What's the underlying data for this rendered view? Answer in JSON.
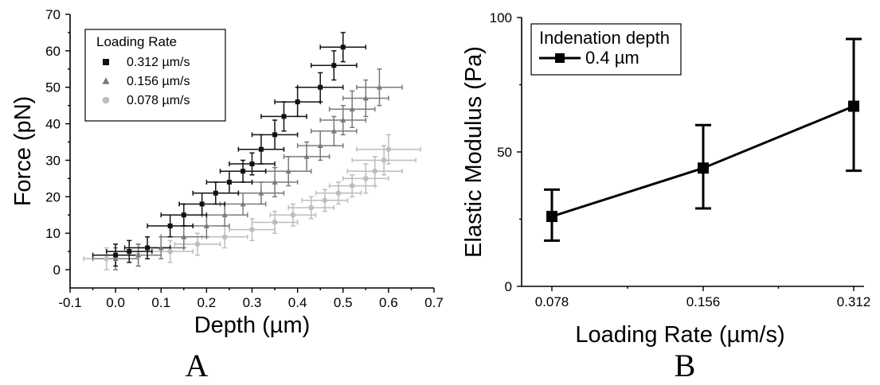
{
  "chart_data": [
    {
      "type": "scatter",
      "panel_label": "A",
      "xlabel": "Depth (µm)",
      "ylabel": "Force (pN)",
      "xlim": [
        -0.1,
        0.7
      ],
      "ylim": [
        -5,
        70
      ],
      "xticks": [
        "-0.1",
        "0.0",
        "0.1",
        "0.2",
        "0.3",
        "0.4",
        "0.5",
        "0.6",
        "0.7"
      ],
      "xtick_values": [
        -0.1,
        0.0,
        0.1,
        0.2,
        0.3,
        0.4,
        0.5,
        0.6,
        0.7
      ],
      "yticks": [
        "0",
        "10",
        "20",
        "30",
        "40",
        "50",
        "60",
        "70"
      ],
      "ytick_values": [
        0,
        10,
        20,
        30,
        40,
        50,
        60,
        70
      ],
      "legend": {
        "title": "Loading Rate",
        "position": "top-left"
      },
      "series": [
        {
          "name": "0.312 µm/s",
          "color": "#111111",
          "marker": "square",
          "x": [
            0.0,
            0.03,
            0.07,
            0.12,
            0.15,
            0.19,
            0.22,
            0.25,
            0.28,
            0.3,
            0.32,
            0.35,
            0.37,
            0.4,
            0.45,
            0.48,
            0.5
          ],
          "y": [
            4,
            5,
            6,
            12,
            15,
            18,
            21,
            24,
            27,
            29,
            33,
            37,
            42,
            46,
            50,
            56,
            61
          ],
          "xerr": [
            0.05,
            0.05,
            0.05,
            0.05,
            0.05,
            0.05,
            0.05,
            0.05,
            0.05,
            0.05,
            0.05,
            0.05,
            0.05,
            0.05,
            0.05,
            0.05,
            0.05
          ],
          "yerr": [
            3,
            3,
            3,
            3,
            3,
            3,
            3,
            3,
            3,
            3,
            4,
            4,
            4,
            4,
            4,
            4,
            4
          ]
        },
        {
          "name": "0.156 µm/s",
          "color": "#7a7a7a",
          "marker": "triangle",
          "x": [
            0.0,
            0.05,
            0.1,
            0.15,
            0.2,
            0.24,
            0.28,
            0.32,
            0.35,
            0.38,
            0.42,
            0.45,
            0.48,
            0.5,
            0.52,
            0.55,
            0.58
          ],
          "y": [
            3,
            4,
            6,
            9,
            12,
            15,
            18,
            21,
            24,
            27,
            31,
            34,
            38,
            41,
            44,
            47,
            50
          ],
          "xerr": [
            0.05,
            0.05,
            0.05,
            0.05,
            0.05,
            0.05,
            0.05,
            0.05,
            0.05,
            0.05,
            0.05,
            0.05,
            0.05,
            0.05,
            0.05,
            0.05,
            0.05
          ],
          "yerr": [
            3,
            3,
            3,
            3,
            3,
            3,
            3,
            3,
            4,
            4,
            4,
            4,
            4,
            4,
            5,
            5,
            5
          ]
        },
        {
          "name": "0.078 µm/s",
          "color": "#bdbdbd",
          "marker": "circle",
          "x": [
            -0.02,
            0.05,
            0.12,
            0.18,
            0.24,
            0.3,
            0.35,
            0.39,
            0.43,
            0.46,
            0.49,
            0.52,
            0.55,
            0.57,
            0.59,
            0.6
          ],
          "y": [
            3,
            4,
            5,
            7,
            9,
            11,
            13,
            15,
            17,
            19,
            21,
            23,
            25,
            27,
            30,
            33
          ],
          "xerr": [
            0.05,
            0.05,
            0.05,
            0.05,
            0.05,
            0.05,
            0.05,
            0.05,
            0.05,
            0.05,
            0.05,
            0.05,
            0.05,
            0.06,
            0.07,
            0.07
          ],
          "yerr": [
            3,
            3,
            3,
            3,
            3,
            3,
            3,
            3,
            3,
            3,
            3,
            3,
            4,
            4,
            4,
            4
          ]
        }
      ]
    },
    {
      "type": "line",
      "panel_label": "B",
      "xlabel": "Loading Rate (µm/s)",
      "ylabel": "Elastic Modulus (Pa)",
      "categories": [
        "0.078",
        "0.156",
        "0.312"
      ],
      "ylim": [
        0,
        100
      ],
      "yticks": [
        "0",
        "50",
        "100"
      ],
      "ytick_values": [
        0,
        50,
        100
      ],
      "legend": {
        "title": "Indenation depth",
        "position": "top-left"
      },
      "series": [
        {
          "name": "0.4 µm",
          "color": "#000000",
          "marker": "square",
          "values": [
            26,
            44,
            67
          ],
          "err_low": [
            17,
            29,
            43
          ],
          "err_high": [
            36,
            60,
            92
          ]
        }
      ]
    }
  ]
}
